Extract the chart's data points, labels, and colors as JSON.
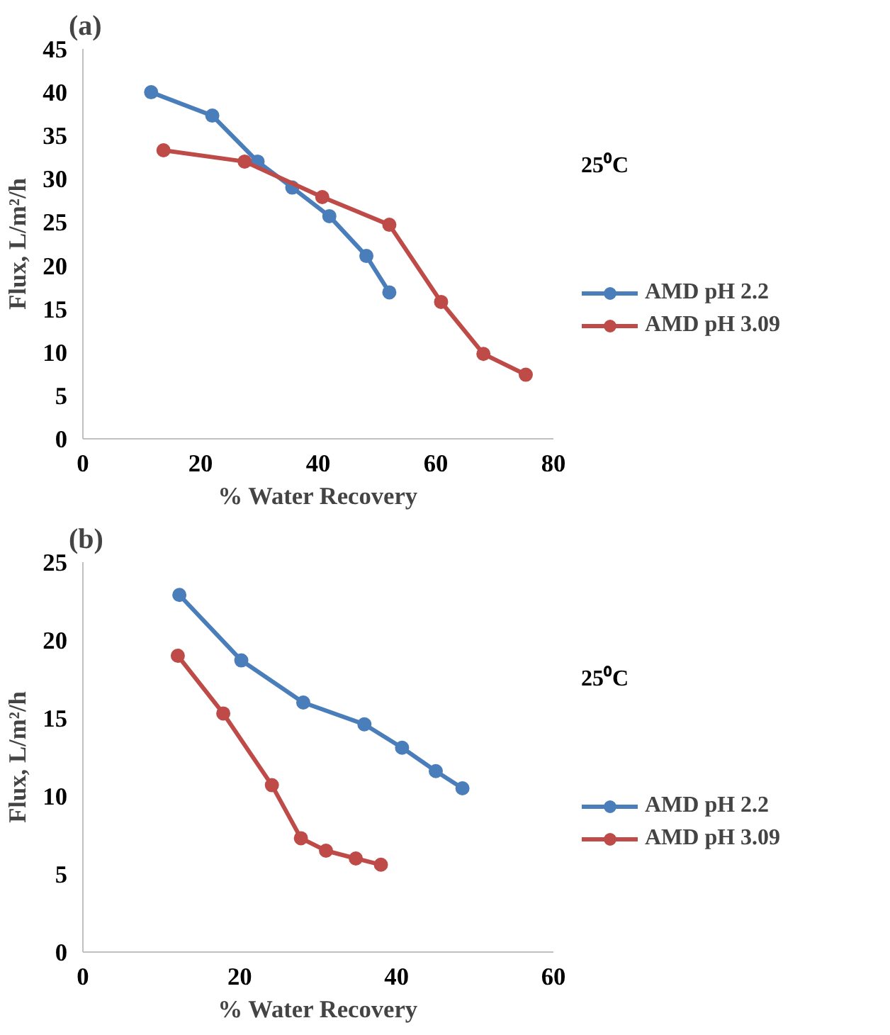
{
  "chart_data": [
    {
      "type": "line",
      "title": "(a)",
      "xlabel": "% Water Recovery",
      "ylabel": "Flux, L/m²/h",
      "legend_title": "25⁰C",
      "xlim": [
        0,
        80
      ],
      "xticks": [
        0,
        20,
        40,
        60,
        80
      ],
      "ylim": [
        0,
        45
      ],
      "yticks": [
        0,
        5,
        10,
        15,
        20,
        25,
        30,
        35,
        40,
        45
      ],
      "grid": false,
      "legend": "right",
      "marker": "circle",
      "line_style": "solid",
      "series": [
        {
          "name": "AMD pH 2.2",
          "color": "#4a7ebb",
          "x": [
            11.6,
            22.0,
            29.7,
            35.6,
            41.9,
            48.2,
            52.1
          ],
          "values": [
            40.0,
            37.3,
            32.0,
            29.0,
            25.7,
            21.1,
            16.9
          ]
        },
        {
          "name": "AMD pH 3.09",
          "color": "#be4b48",
          "x": [
            13.7,
            27.5,
            40.7,
            52.1,
            60.9,
            68.1,
            75.3
          ],
          "values": [
            33.3,
            32.0,
            27.9,
            24.7,
            15.8,
            9.8,
            7.4
          ]
        }
      ]
    },
    {
      "type": "line",
      "title": "(b)",
      "xlabel": "% Water Recovery",
      "ylabel": "Flux, L/m²/h",
      "legend_title": "25⁰C",
      "xlim": [
        0,
        60
      ],
      "xticks": [
        0,
        20,
        40,
        60
      ],
      "ylim": [
        0,
        25
      ],
      "yticks": [
        0,
        5,
        10,
        15,
        20,
        25
      ],
      "grid": false,
      "legend": "right",
      "marker": "circle",
      "line_style": "solid",
      "series": [
        {
          "name": "AMD pH 2.2",
          "color": "#4a7ebb",
          "x": [
            12.3,
            20.2,
            28.1,
            35.9,
            40.7,
            45.0,
            48.4
          ],
          "values": [
            22.9,
            18.7,
            16.0,
            14.6,
            13.1,
            11.6,
            10.5
          ]
        },
        {
          "name": "AMD pH 3.09",
          "color": "#be4b48",
          "x": [
            12.1,
            17.9,
            24.1,
            27.8,
            31.0,
            34.8,
            38.0
          ],
          "values": [
            19.0,
            15.3,
            10.7,
            7.3,
            6.5,
            6.0,
            5.6
          ]
        }
      ]
    }
  ]
}
